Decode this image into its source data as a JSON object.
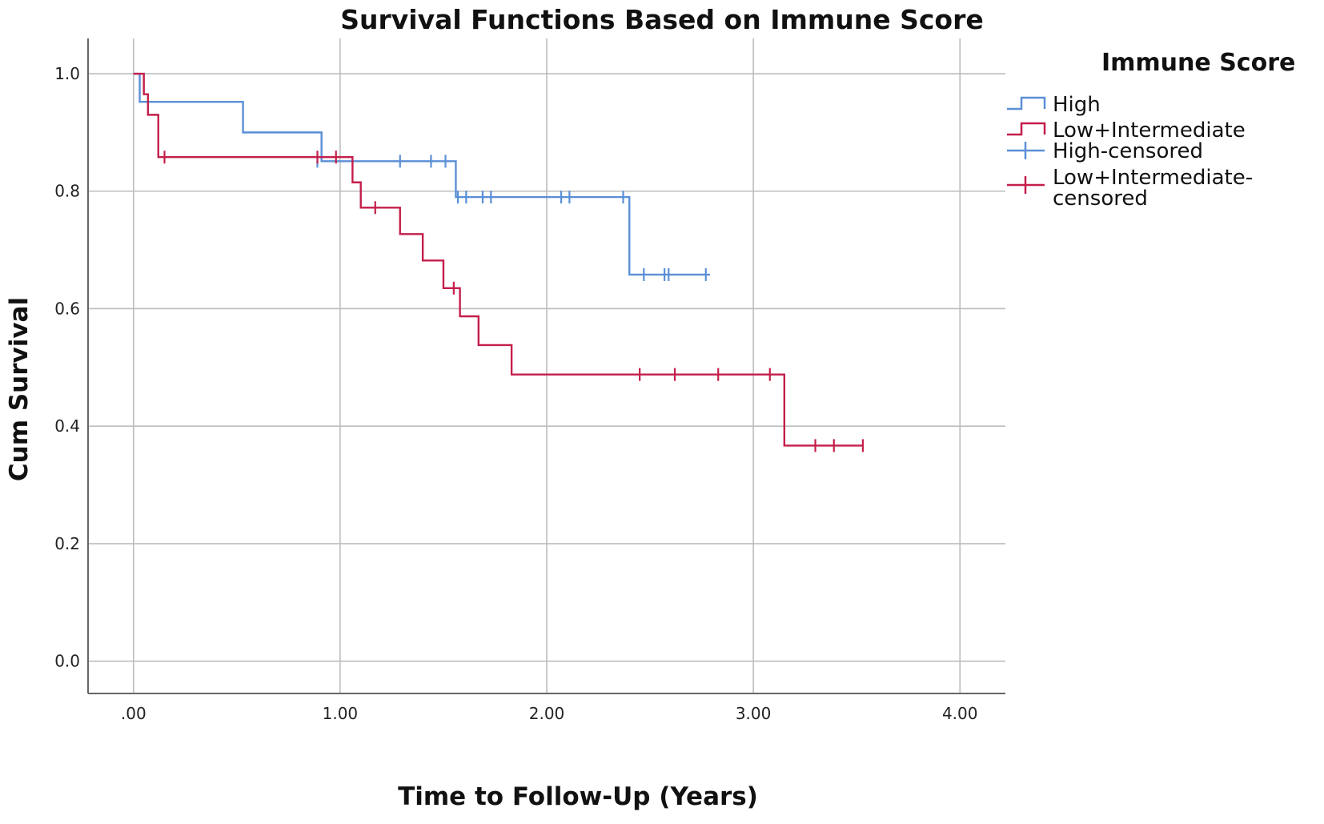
{
  "chart_data": {
    "type": "line",
    "step": true,
    "title": "Survival Functions Based on Immune Score",
    "xlabel": "Time to Follow-Up (Years)",
    "ylabel": "Cum Survival",
    "xlim": [
      -0.22,
      4.22
    ],
    "ylim": [
      -0.055,
      1.06
    ],
    "grid": true,
    "x_ticks": [
      0,
      1,
      2,
      3,
      4
    ],
    "x_tick_labels": [
      ".00",
      "1.00",
      "2.00",
      "3.00",
      "4.00"
    ],
    "y_ticks": [
      0,
      0.2,
      0.4,
      0.6,
      0.8,
      1.0
    ],
    "y_tick_labels": [
      "0.0",
      "0.2",
      "0.4",
      "0.6",
      "0.8",
      "1.0"
    ],
    "legend": {
      "title": "Immune Score",
      "placement": "right",
      "entries": [
        "High",
        "Low+Intermediate",
        "High-censored",
        "Low+Intermediate-censored"
      ]
    },
    "series": [
      {
        "name": "High",
        "color": "#5b8fd6",
        "steps": [
          [
            0.0,
            1.0
          ],
          [
            0.03,
            0.952
          ],
          [
            0.53,
            0.9
          ],
          [
            0.91,
            0.851
          ],
          [
            1.56,
            0.79
          ],
          [
            2.4,
            0.658
          ],
          [
            2.79,
            0.658
          ]
        ],
        "censored": [
          [
            0.89,
            0.851
          ],
          [
            1.29,
            0.851
          ],
          [
            1.44,
            0.851
          ],
          [
            1.51,
            0.851
          ],
          [
            1.57,
            0.79
          ],
          [
            1.61,
            0.79
          ],
          [
            1.69,
            0.79
          ],
          [
            1.73,
            0.79
          ],
          [
            2.07,
            0.79
          ],
          [
            2.11,
            0.79
          ],
          [
            2.37,
            0.79
          ],
          [
            2.47,
            0.658
          ],
          [
            2.57,
            0.658
          ],
          [
            2.59,
            0.658
          ],
          [
            2.77,
            0.658
          ]
        ]
      },
      {
        "name": "Low+Intermediate",
        "color": "#c41e4a",
        "steps": [
          [
            0.0,
            1.0
          ],
          [
            0.05,
            0.965
          ],
          [
            0.07,
            0.93
          ],
          [
            0.12,
            0.858
          ],
          [
            1.06,
            0.815
          ],
          [
            1.1,
            0.772
          ],
          [
            1.29,
            0.727
          ],
          [
            1.4,
            0.682
          ],
          [
            1.5,
            0.635
          ],
          [
            1.58,
            0.587
          ],
          [
            1.67,
            0.538
          ],
          [
            1.83,
            0.488
          ],
          [
            3.15,
            0.367
          ],
          [
            3.53,
            0.367
          ]
        ],
        "censored": [
          [
            0.15,
            0.858
          ],
          [
            0.89,
            0.858
          ],
          [
            0.98,
            0.858
          ],
          [
            1.17,
            0.772
          ],
          [
            1.55,
            0.635
          ],
          [
            2.45,
            0.488
          ],
          [
            2.62,
            0.488
          ],
          [
            2.83,
            0.488
          ],
          [
            3.08,
            0.488
          ],
          [
            3.3,
            0.367
          ],
          [
            3.39,
            0.367
          ],
          [
            3.53,
            0.367
          ]
        ]
      }
    ]
  },
  "colors": {
    "high": "#5b8fd6",
    "low_intermediate": "#c41e4a",
    "grid": "#bdbdbd",
    "axis": "#666666"
  }
}
